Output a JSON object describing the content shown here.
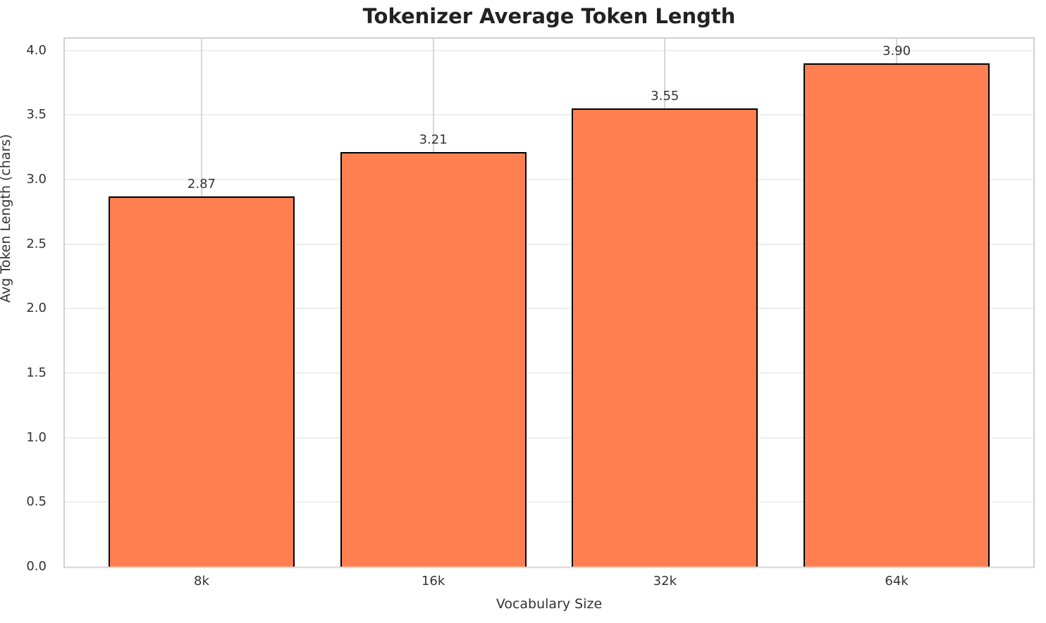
{
  "chart_data": {
    "type": "bar",
    "title": "Tokenizer Average Token Length",
    "xlabel": "Vocabulary Size",
    "ylabel": "Avg Token Length (chars)",
    "categories": [
      "8k",
      "16k",
      "32k",
      "64k"
    ],
    "values": [
      2.87,
      3.21,
      3.55,
      3.9
    ],
    "value_labels": [
      "2.87",
      "3.21",
      "3.55",
      "3.90"
    ],
    "ytick_values": [
      0,
      0.5,
      1,
      1.5,
      2,
      2.5,
      3,
      3.5,
      4
    ],
    "ytick_labels": [
      "0.0",
      "0.5",
      "1.0",
      "1.5",
      "2.0",
      "2.5",
      "3.0",
      "3.5",
      "4.0"
    ],
    "ylim": [
      0,
      4.09
    ],
    "grid": true,
    "legend_position": "none",
    "colors": {
      "bar_fill": "#ff7f50",
      "bar_edge": "#000000",
      "grid_vertical": "#d6d6d6",
      "grid_horizontal": "#ededed",
      "spine": "#d0d0d0",
      "text": "#333333",
      "title_text": "#222222",
      "background": "#ffffff"
    }
  }
}
